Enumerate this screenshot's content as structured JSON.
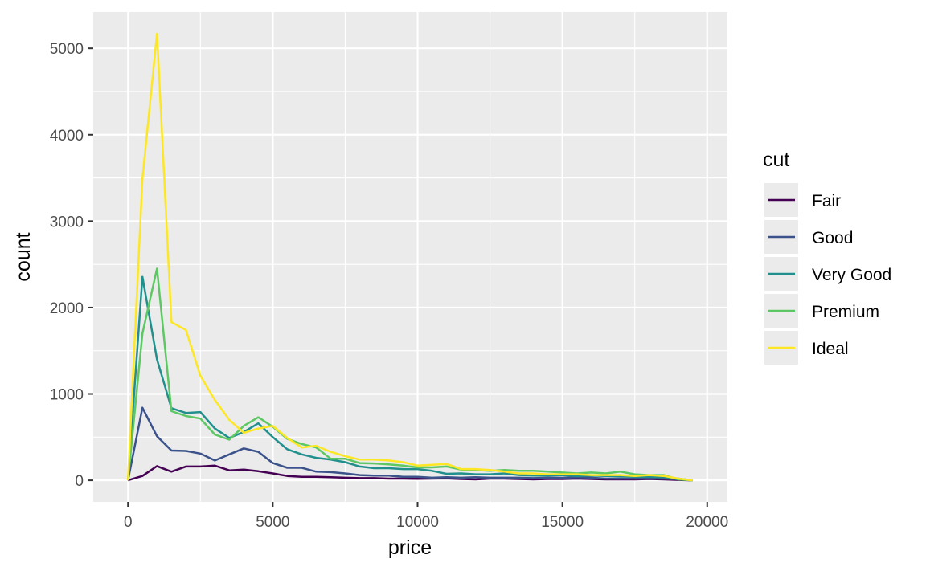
{
  "chart_data": {
    "type": "line",
    "xlabel": "price",
    "ylabel": "count",
    "xlim": [
      -1200,
      20700
    ],
    "ylim": [
      -250,
      5420
    ],
    "x_ticks": [
      0,
      5000,
      10000,
      15000,
      20000
    ],
    "x_tick_labels": [
      "0",
      "5000",
      "10000",
      "15000",
      "20000"
    ],
    "y_ticks": [
      0,
      1000,
      2000,
      3000,
      4000,
      5000
    ],
    "y_tick_labels": [
      "0",
      "1000",
      "2000",
      "3000",
      "4000",
      "5000"
    ],
    "grid": true,
    "background": "#ebebeb",
    "legend": {
      "title": "cut",
      "placement": "right"
    },
    "x": [
      0,
      500,
      1000,
      1500,
      2000,
      2500,
      3000,
      3500,
      4000,
      4500,
      5000,
      5500,
      6000,
      6500,
      7000,
      7500,
      8000,
      8500,
      9000,
      9500,
      10000,
      10500,
      11000,
      11500,
      12000,
      12500,
      13000,
      13500,
      14000,
      14500,
      15000,
      15500,
      16000,
      16500,
      17000,
      17500,
      18000,
      18500,
      19000,
      19500
    ],
    "series": [
      {
        "name": "Fair",
        "color": "#440154",
        "values": [
          0,
          50,
          165,
          100,
          160,
          160,
          170,
          115,
          125,
          105,
          80,
          50,
          40,
          40,
          35,
          30,
          25,
          25,
          20,
          20,
          18,
          20,
          22,
          15,
          10,
          20,
          20,
          15,
          10,
          15,
          15,
          20,
          15,
          10,
          10,
          10,
          15,
          10,
          5,
          0
        ]
      },
      {
        "name": "Good",
        "color": "#3b528b",
        "values": [
          0,
          840,
          510,
          345,
          340,
          310,
          230,
          300,
          370,
          330,
          200,
          145,
          145,
          100,
          95,
          80,
          60,
          55,
          55,
          40,
          40,
          30,
          35,
          30,
          35,
          30,
          30,
          30,
          25,
          30,
          30,
          35,
          30,
          20,
          20,
          20,
          20,
          20,
          10,
          0
        ]
      },
      {
        "name": "Very Good",
        "color": "#21908d",
        "values": [
          0,
          2355,
          1400,
          835,
          780,
          790,
          600,
          490,
          560,
          660,
          500,
          360,
          300,
          260,
          240,
          210,
          160,
          140,
          140,
          130,
          130,
          110,
          75,
          80,
          70,
          70,
          80,
          60,
          55,
          55,
          60,
          50,
          55,
          50,
          45,
          40,
          40,
          35,
          20,
          0
        ]
      },
      {
        "name": "Premium",
        "color": "#5dc863",
        "values": [
          0,
          1700,
          2450,
          800,
          745,
          715,
          530,
          470,
          630,
          730,
          620,
          480,
          420,
          380,
          250,
          250,
          200,
          195,
          185,
          170,
          150,
          150,
          160,
          125,
          120,
          110,
          120,
          110,
          110,
          100,
          90,
          80,
          90,
          80,
          100,
          70,
          60,
          60,
          10,
          0
        ]
      },
      {
        "name": "Ideal",
        "color": "#fde725",
        "values": [
          0,
          3490,
          5170,
          1830,
          1740,
          1210,
          930,
          700,
          550,
          600,
          630,
          490,
          380,
          400,
          330,
          280,
          240,
          240,
          230,
          210,
          170,
          180,
          190,
          130,
          130,
          120,
          100,
          80,
          80,
          70,
          70,
          70,
          60,
          60,
          60,
          50,
          60,
          50,
          20,
          0
        ]
      }
    ]
  }
}
